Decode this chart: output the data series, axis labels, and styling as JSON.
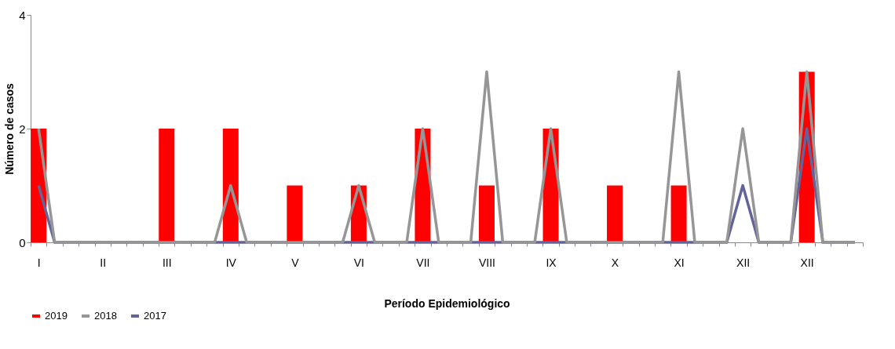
{
  "chart_data": {
    "type": "bar",
    "xlabel": "Período Epidemiológico",
    "ylabel": "Número de casos",
    "categories": [
      "I",
      null,
      null,
      null,
      "II",
      null,
      null,
      null,
      "III",
      null,
      null,
      null,
      "IV",
      null,
      null,
      null,
      "V",
      null,
      null,
      null,
      "VI",
      null,
      null,
      null,
      "VII",
      null,
      null,
      null,
      "VIII",
      null,
      null,
      null,
      "IX",
      null,
      null,
      null,
      "X",
      null,
      null,
      null,
      "XI",
      null,
      null,
      null,
      "XII",
      null,
      null,
      null,
      "XII",
      null,
      null,
      null
    ],
    "series": [
      {
        "name": "2019",
        "color": "#ff0000",
        "values": [
          2,
          null,
          null,
          null,
          null,
          null,
          null,
          null,
          2,
          null,
          null,
          null,
          2,
          null,
          null,
          null,
          1,
          null,
          null,
          null,
          1,
          null,
          null,
          null,
          2,
          null,
          null,
          null,
          1,
          null,
          null,
          null,
          2,
          null,
          null,
          null,
          1,
          null,
          null,
          null,
          1,
          null,
          null,
          null,
          null,
          null,
          null,
          null,
          3,
          null,
          null,
          null
        ]
      },
      {
        "name": "2018",
        "type": "line",
        "color": "#969696",
        "values": [
          2,
          0,
          0,
          0,
          0,
          0,
          0,
          0,
          0,
          0,
          0,
          0,
          1,
          0,
          0,
          0,
          0,
          0,
          0,
          0,
          1,
          0,
          0,
          0,
          2,
          0,
          0,
          0,
          3,
          0,
          0,
          0,
          2,
          0,
          0,
          0,
          0,
          0,
          0,
          0,
          3,
          0,
          0,
          0,
          2,
          0,
          0,
          0,
          3,
          0,
          0,
          0
        ]
      },
      {
        "name": "2017",
        "type": "line",
        "color": "#63639b",
        "values": [
          1,
          0,
          0,
          0,
          0,
          0,
          0,
          0,
          0,
          0,
          0,
          0,
          0,
          0,
          0,
          0,
          0,
          0,
          0,
          0,
          0,
          0,
          0,
          0,
          0,
          0,
          0,
          0,
          0,
          0,
          0,
          0,
          0,
          0,
          0,
          0,
          0,
          0,
          0,
          0,
          0,
          0,
          0,
          0,
          1,
          0,
          0,
          0,
          2,
          0,
          0,
          0
        ]
      }
    ],
    "ylim": [
      0,
      4
    ],
    "yticks": [
      0,
      2,
      4
    ],
    "grid": false,
    "legend": "bottom",
    "line_style": "solid",
    "marker": "none"
  }
}
